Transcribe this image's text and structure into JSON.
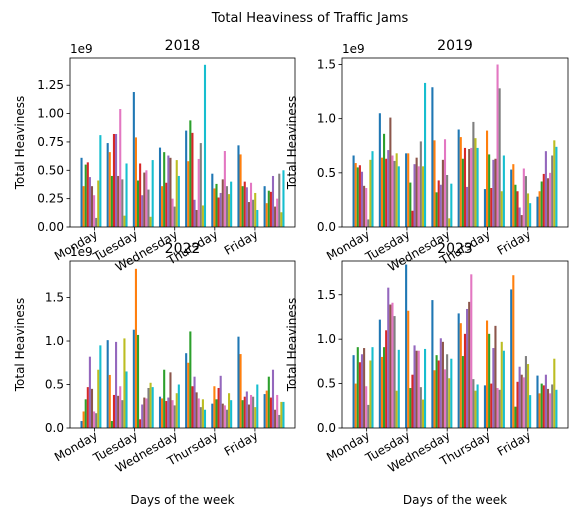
{
  "figure": {
    "suptitle": "Total Heaviness of Traffic Jams",
    "colors": [
      "#1f77b4",
      "#ff7f0e",
      "#2ca02c",
      "#d62728",
      "#9467bd",
      "#8c564b",
      "#e377c2",
      "#7f7f7f",
      "#bcbd22",
      "#17becf"
    ]
  },
  "chart_data": [
    {
      "type": "bar",
      "title": "2018",
      "xlabel": "",
      "ylabel": "Total Heaviness",
      "offset_text": "1e9",
      "categories": [
        "Monday",
        "Tuesday",
        "Wednesday",
        "Thursday",
        "Friday"
      ],
      "yticks": [
        0.0,
        0.25,
        0.5,
        0.75,
        1.0,
        1.25
      ],
      "ytick_labels": [
        "0.00",
        "0.25",
        "0.50",
        "0.75",
        "1.00",
        "1.25"
      ],
      "ylim": [
        0,
        1.49
      ],
      "bars_per_category": 10,
      "values": [
        [
          0.61,
          0.36,
          0.55,
          0.57,
          0.44,
          0.36,
          0.28,
          0.08,
          0.41,
          0.81
        ],
        [
          0.74,
          0.66,
          0.45,
          0.82,
          0.82,
          0.45,
          1.04,
          0.42,
          0.1,
          0.56
        ],
        [
          1.19,
          0.79,
          0.41,
          0.56,
          0.28,
          0.48,
          0.5,
          0.33,
          0.09,
          0.59
        ],
        [
          0.7,
          0.36,
          0.66,
          0.39,
          0.63,
          0.61,
          0.25,
          0.18,
          0.59,
          0.45
        ],
        [
          0.85,
          0.58,
          0.94,
          0.83,
          0.24,
          0.15,
          0.6,
          0.74,
          0.19,
          1.43
        ],
        [
          0.47,
          0.34,
          0.38,
          0.26,
          0.3,
          0.42,
          0.67,
          0.36,
          0.29,
          0.4
        ],
        [
          0.72,
          0.64,
          0.36,
          0.4,
          0.35,
          0.22,
          0.39,
          0.24,
          0.3,
          0.15
        ],
        [
          0.36,
          0.21,
          0.32,
          0.31,
          0.45,
          0.18,
          0.25,
          0.47,
          0.13,
          0.5
        ]
      ]
    },
    {
      "type": "bar",
      "title": "2019",
      "xlabel": "",
      "ylabel": "Total Heaviness",
      "offset_text": "1e9",
      "categories": [
        "Monday",
        "Tuesday",
        "Wednesday",
        "Thursday",
        "Friday"
      ],
      "yticks": [
        0.0,
        0.5,
        1.0,
        1.5
      ],
      "ytick_labels": [
        "0.0",
        "0.5",
        "1.0",
        "1.5"
      ],
      "ylim": [
        0,
        1.56
      ],
      "bars_per_category": 10,
      "values": [
        [
          0.66,
          0.59,
          0.55,
          0.57,
          0.51,
          0.38,
          0.36,
          0.07,
          0.62,
          0.7
        ],
        [
          1.05,
          0.64,
          0.86,
          0.63,
          0.71,
          1.01,
          0.66,
          0.61,
          0.68,
          0.56
        ],
        [
          0.68,
          0.68,
          0.41,
          0.15,
          0.58,
          0.64,
          0.56,
          0.79,
          0.56,
          1.33
        ],
        [
          1.29,
          0.8,
          0.32,
          0.43,
          0.39,
          0.62,
          0.81,
          0.48,
          0.08,
          0.4
        ],
        [
          0.9,
          0.83,
          0.63,
          0.73,
          0.37,
          0.72,
          0.73,
          0.97,
          0.82,
          0.73
        ],
        [
          0.35,
          0.89,
          0.67,
          0.36,
          0.62,
          0.63,
          1.5,
          1.28,
          0.33,
          0.66
        ],
        [
          0.53,
          0.58,
          0.39,
          0.33,
          0.18,
          0.11,
          0.54,
          0.47,
          0.31,
          0.22
        ],
        [
          0.28,
          0.33,
          0.42,
          0.49,
          0.7,
          0.45,
          0.5,
          0.66,
          0.8,
          0.74
        ]
      ]
    },
    {
      "type": "bar",
      "title": "2022",
      "xlabel": "Days of the week",
      "ylabel": "Total Heaviness",
      "offset_text": "1e9",
      "categories": [
        "Monday",
        "Tuesday",
        "Wednesday",
        "Thursday",
        "Friday"
      ],
      "yticks": [
        0.0,
        0.5,
        1.0,
        1.5
      ],
      "ytick_labels": [
        "0.0",
        "0.5",
        "1.0",
        "1.5"
      ],
      "ylim": [
        0,
        1.92
      ],
      "bars_per_category": 10,
      "values": [
        [
          0.08,
          0.19,
          0.33,
          0.47,
          0.82,
          0.45,
          0.19,
          0.17,
          0.67,
          0.95
        ],
        [
          1.01,
          0.61,
          0.08,
          0.38,
          0.99,
          0.37,
          0.48,
          0.32,
          1.03,
          0.65
        ],
        [
          1.13,
          1.83,
          1.07,
          0.1,
          0.27,
          0.35,
          0.34,
          0.46,
          0.52,
          0.47
        ],
        [
          0.36,
          0.34,
          0.67,
          0.31,
          0.35,
          0.64,
          0.32,
          0.26,
          0.4,
          0.5
        ],
        [
          0.86,
          0.75,
          1.11,
          0.48,
          0.59,
          0.41,
          0.34,
          0.24,
          0.33,
          0.21
        ],
        [
          0.28,
          0.48,
          0.33,
          0.46,
          0.6,
          0.28,
          0.26,
          0.21,
          0.4,
          0.32
        ],
        [
          1.05,
          0.85,
          0.32,
          0.36,
          0.42,
          0.27,
          0.38,
          0.36,
          0.24,
          0.5
        ],
        [
          0.39,
          0.43,
          0.59,
          0.35,
          0.67,
          0.21,
          0.38,
          0.15,
          0.3,
          0.3
        ]
      ]
    },
    {
      "type": "bar",
      "title": "2023",
      "xlabel": "Days of the week",
      "ylabel": "Total Heaviness",
      "offset_text": "",
      "categories": [
        "Monday",
        "Tuesday",
        "Wednesday",
        "Thursday",
        "Friday"
      ],
      "yticks": [
        0.0,
        0.5,
        1.0,
        1.5
      ],
      "ytick_labels": [
        "0.0",
        "0.5",
        "1.0",
        "1.5"
      ],
      "ylim": [
        0,
        1.88
      ],
      "bars_per_category": 10,
      "values": [
        [
          0.82,
          0.5,
          0.91,
          0.74,
          0.83,
          0.9,
          0.47,
          0.26,
          0.76,
          0.91
        ],
        [
          1.22,
          0.8,
          0.91,
          1.1,
          1.58,
          1.39,
          1.41,
          1.26,
          0.42,
          0.88
        ],
        [
          1.84,
          1.32,
          0.45,
          0.6,
          0.93,
          0.87,
          0.87,
          0.46,
          0.32,
          0.89
        ],
        [
          1.44,
          0.65,
          0.82,
          0.76,
          1.01,
          0.97,
          0.66,
          0.83,
          0.56,
          0.78
        ],
        [
          1.29,
          1.18,
          0.81,
          1.06,
          1.34,
          1.42,
          1.73,
          0.55,
          0.42,
          0.49
        ],
        [
          0.48,
          1.21,
          1.06,
          0.5,
          0.9,
          1.15,
          0.45,
          0.43,
          0.97,
          0.87
        ],
        [
          1.56,
          1.72,
          0.24,
          0.52,
          0.69,
          0.6,
          0.57,
          0.81,
          0.72,
          0.37
        ],
        [
          0.59,
          0.39,
          0.5,
          0.48,
          0.6,
          0.44,
          0.39,
          0.49,
          0.78,
          0.43
        ]
      ]
    }
  ]
}
